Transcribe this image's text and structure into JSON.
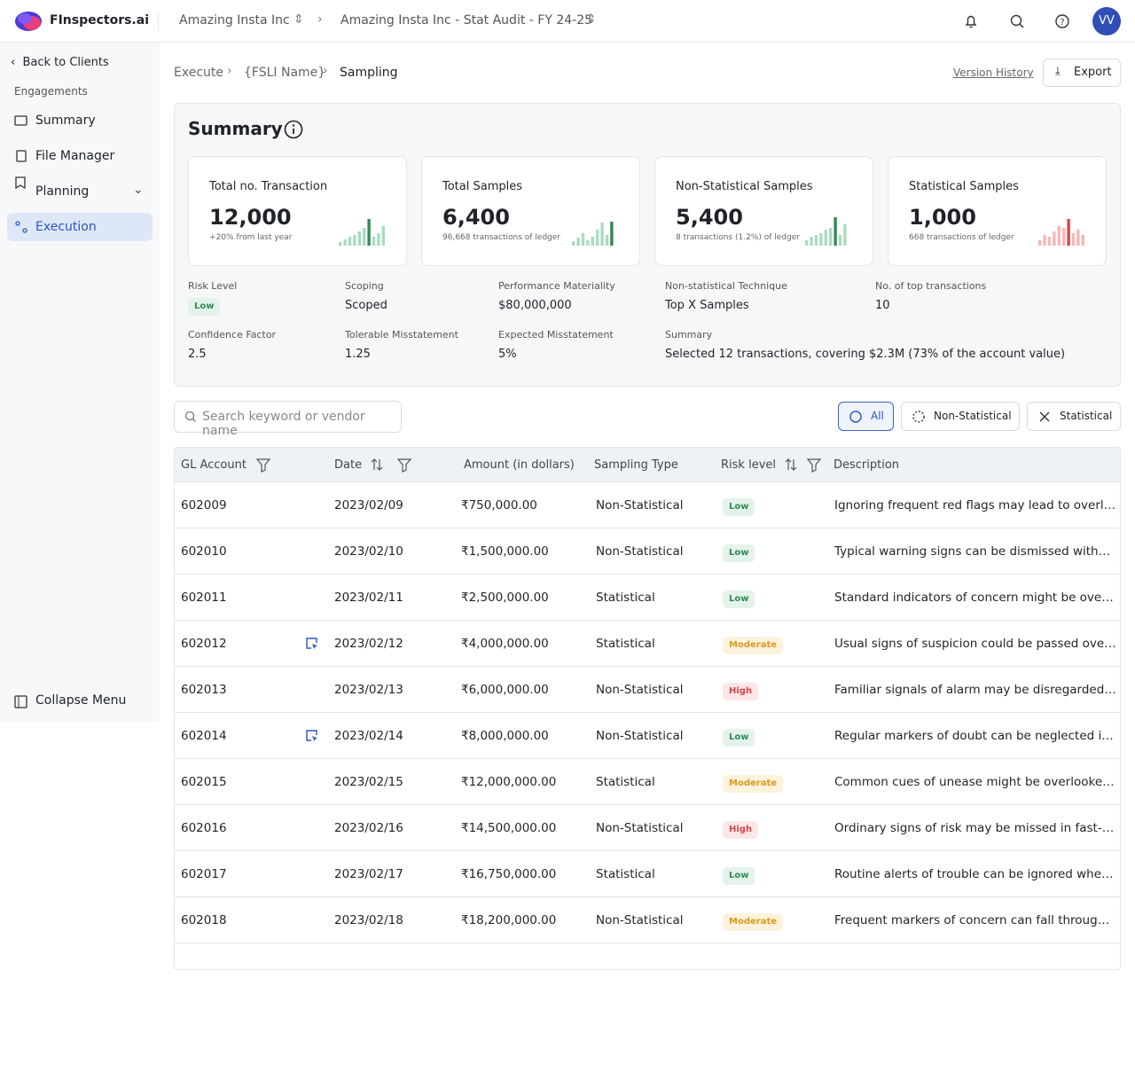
{
  "header": {
    "brand": "FInspectors.ai",
    "crumbs": [
      "Amazing Insta Inc",
      "Amazing Insta Inc - Stat Audit - FY 24-25"
    ],
    "avatar": "VV"
  },
  "sidebar": {
    "back": "Back to Clients",
    "section": "Engagements",
    "items": [
      "Summary",
      "File Manager",
      "Planning",
      "Execution"
    ],
    "collapse": "Collapse Menu"
  },
  "page": {
    "crumbs": [
      "Execute",
      "{FSLI Name}",
      "Sampling"
    ],
    "version_history": "Version History",
    "export": "Export"
  },
  "summary": {
    "title": "Summary",
    "cards": [
      {
        "label": "Total no. Transaction",
        "value": "12,000",
        "note": "+20% from last year"
      },
      {
        "label": "Total Samples",
        "value": "6,400",
        "note": "96,668 transactions of ledger"
      },
      {
        "label": "Non-Statistical Samples",
        "value": "5,400",
        "note": "8 transactions (1.2%) of ledger"
      },
      {
        "label": "Statistical Samples",
        "value": "1,000",
        "note": "668 transactions of ledger"
      }
    ],
    "fields": [
      {
        "label": "Risk Level",
        "value": "Low"
      },
      {
        "label": "Scoping",
        "value": "Scoped"
      },
      {
        "label": "Performance Materiality",
        "value": "$80,000,000"
      },
      {
        "label": "Non-statistical Technique",
        "value": "Top X Samples"
      },
      {
        "label": "No. of top transactions",
        "value": "10"
      },
      {
        "label": "Confidence Factor",
        "value": "2.5"
      },
      {
        "label": "Tolerable Misstatement",
        "value": "1.25"
      },
      {
        "label": "Expected Misstatement",
        "value": "5%"
      },
      {
        "label": "Summary",
        "value": "Selected 12 transactions, covering $2.3M (73% of the account value)"
      }
    ]
  },
  "filters": {
    "search": "Search keyword or vendor name",
    "options": [
      "All",
      "Non-Statistical",
      "Statistical"
    ]
  },
  "table": {
    "columns": [
      "GL Account",
      "Date",
      "Amount (in dollars)",
      "Sampling Type",
      "Risk level",
      "Description"
    ],
    "rows": [
      {
        "gl": "602009",
        "date": "2023/02/09",
        "amount": "₹750,000.00",
        "type": "Non-Statistical",
        "risk": "Low",
        "description": "Ignoring frequent red flags may lead to overlooking"
      },
      {
        "gl": "602010",
        "date": "2023/02/10",
        "amount": "₹1,500,000.00",
        "type": "Non-Statistical",
        "risk": "Low",
        "description": "Typical warning signs can be dismissed without"
      },
      {
        "gl": "602011",
        "date": "2023/02/11",
        "amount": "₹2,500,000.00",
        "type": "Statistical",
        "risk": "Low",
        "description": "Standard indicators of concern might be overlooked"
      },
      {
        "gl": "602012",
        "date": "2023/02/12",
        "amount": "₹4,000,000.00",
        "type": "Statistical",
        "risk": "Moderate",
        "description": "Usual signs of suspicion could be passed over unnoticed",
        "marked": true
      },
      {
        "gl": "602013",
        "date": "2023/02/13",
        "amount": "₹6,000,000.00",
        "type": "Non-Statistical",
        "risk": "High",
        "description": "Familiar signals of alarm may be disregarded in"
      },
      {
        "gl": "602014",
        "date": "2023/02/14",
        "amount": "₹8,000,000.00",
        "type": "Non-Statistical",
        "risk": "Low",
        "description": "Regular markers of doubt can be neglected in fast",
        "marked": true
      },
      {
        "gl": "602015",
        "date": "2023/02/15",
        "amount": "₹12,000,000.00",
        "type": "Statistical",
        "risk": "Moderate",
        "description": "Common cues of unease might be overlooked in"
      },
      {
        "gl": "602016",
        "date": "2023/02/16",
        "amount": "₹14,500,000.00",
        "type": "Non-Statistical",
        "risk": "High",
        "description": "Ordinary signs of risk may be missed in fast-paced"
      },
      {
        "gl": "602017",
        "date": "2023/02/17",
        "amount": "₹16,750,000.00",
        "type": "Statistical",
        "risk": "Low",
        "description": "Routine alerts of trouble can be ignored when under"
      },
      {
        "gl": "602018",
        "date": "2023/02/18",
        "amount": "₹18,200,000.00",
        "type": "Non-Statistical",
        "risk": "Moderate",
        "description": "Frequent markers of concern can fall through the"
      }
    ]
  }
}
